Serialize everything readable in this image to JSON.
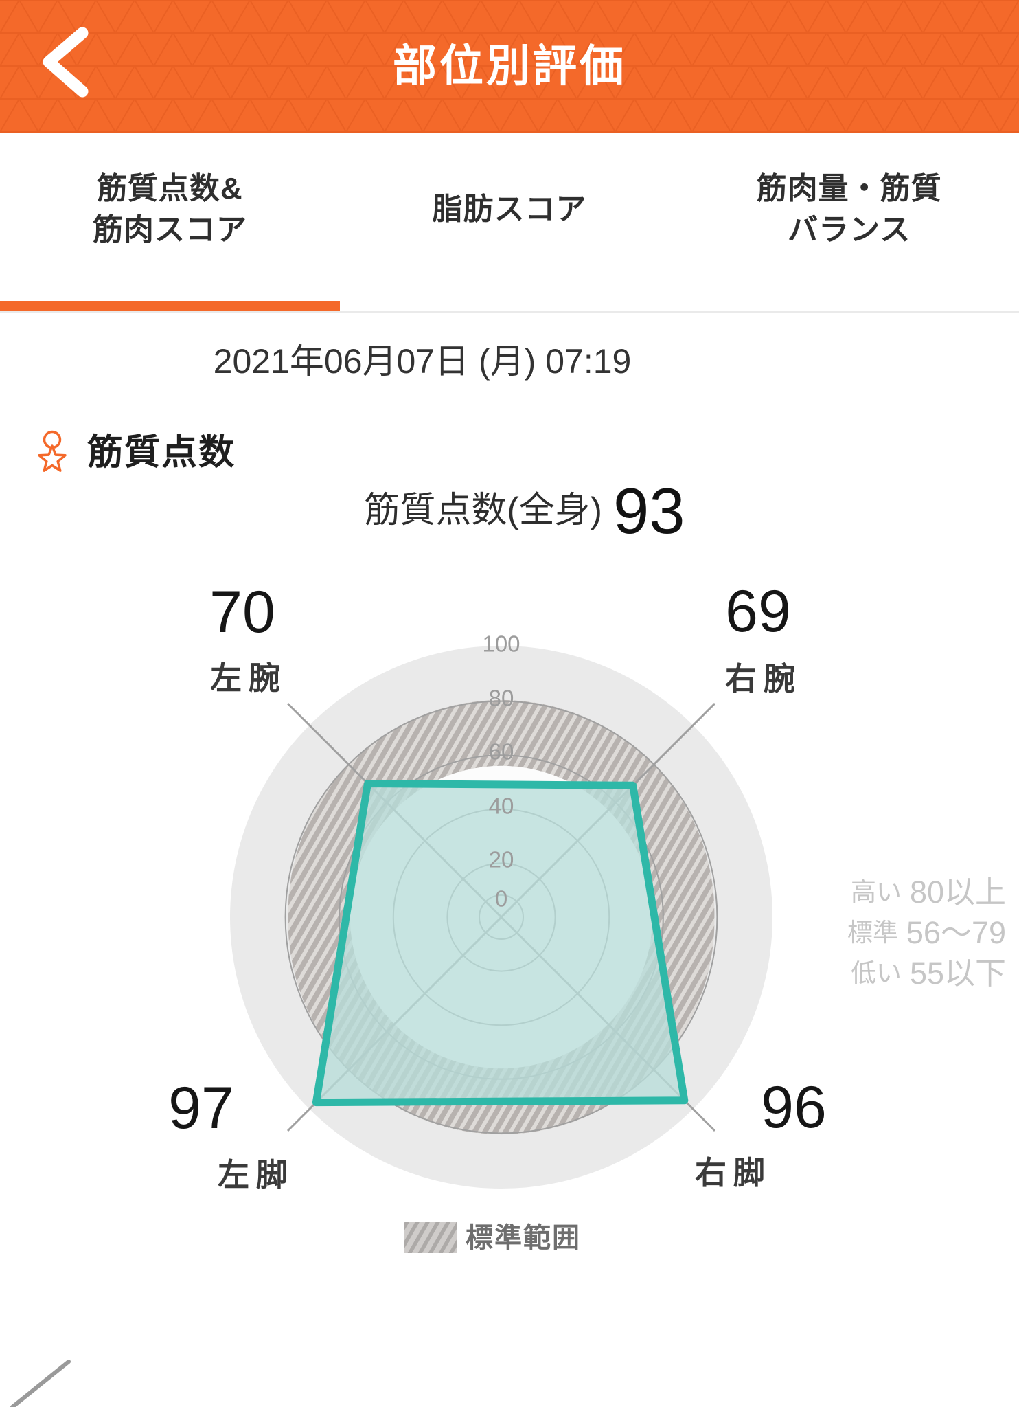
{
  "colors": {
    "accent_orange": "#F4692A",
    "header_pattern_line": "#E35A1E",
    "header_text": "#FFFFFF",
    "tab_text": "#2F2F2F",
    "body_text": "#333333",
    "teal_stroke": "#2EB8A8",
    "teal_fill": "rgba(183,221,216,0.78)",
    "disc": "#EAEAEA",
    "inner_disc": "#FCFCFC",
    "hatch_base": "#B7B2AF",
    "hatch_stripe": "#DEDBD8",
    "swatch_base": "#CFCCCA",
    "swatch_stripe": "#ADAAA8",
    "grid_line": "#A0A0A0",
    "tick_label": "#9C9C9C",
    "range_legend_text": "#C6C6C6",
    "legend_text": "#6E6E6E"
  },
  "icons": {
    "back": "chevron-left-icon",
    "section": "medal-star-icon"
  },
  "header": {
    "title": "部位別評価"
  },
  "tabs": {
    "items": [
      {
        "line1": "筋質点数&",
        "line2": "筋肉スコア",
        "active": true
      },
      {
        "line1": "脂肪スコア",
        "line2": "",
        "active": false
      },
      {
        "line1": "筋肉量・筋質",
        "line2": "バランス",
        "active": false
      }
    ]
  },
  "date_bar": {
    "date": "2021年06月07日 (月) 07:19"
  },
  "section": {
    "title": "筋質点数"
  },
  "summary": {
    "label": "筋質点数(全身)",
    "value": "93"
  },
  "chart_data": {
    "type": "radar",
    "title": "筋質点数(全身)",
    "max": 100,
    "ticks": [
      0,
      20,
      40,
      60,
      80,
      100
    ],
    "points": [
      {
        "position": "top-left",
        "label": "左腕",
        "value": 70
      },
      {
        "position": "top-right",
        "label": "右腕",
        "value": 69
      },
      {
        "position": "bottom-right",
        "label": "右脚",
        "value": 96
      },
      {
        "position": "bottom-left",
        "label": "左脚",
        "value": 97
      }
    ],
    "standard_range": {
      "min": 56,
      "max": 79,
      "label": "標準範囲"
    },
    "range_legend": [
      {
        "label": "高い",
        "value": "80以上"
      },
      {
        "label": "標準",
        "value": "56〜79"
      },
      {
        "label": "低い",
        "value": "55以下"
      }
    ],
    "legend_position": "right"
  }
}
